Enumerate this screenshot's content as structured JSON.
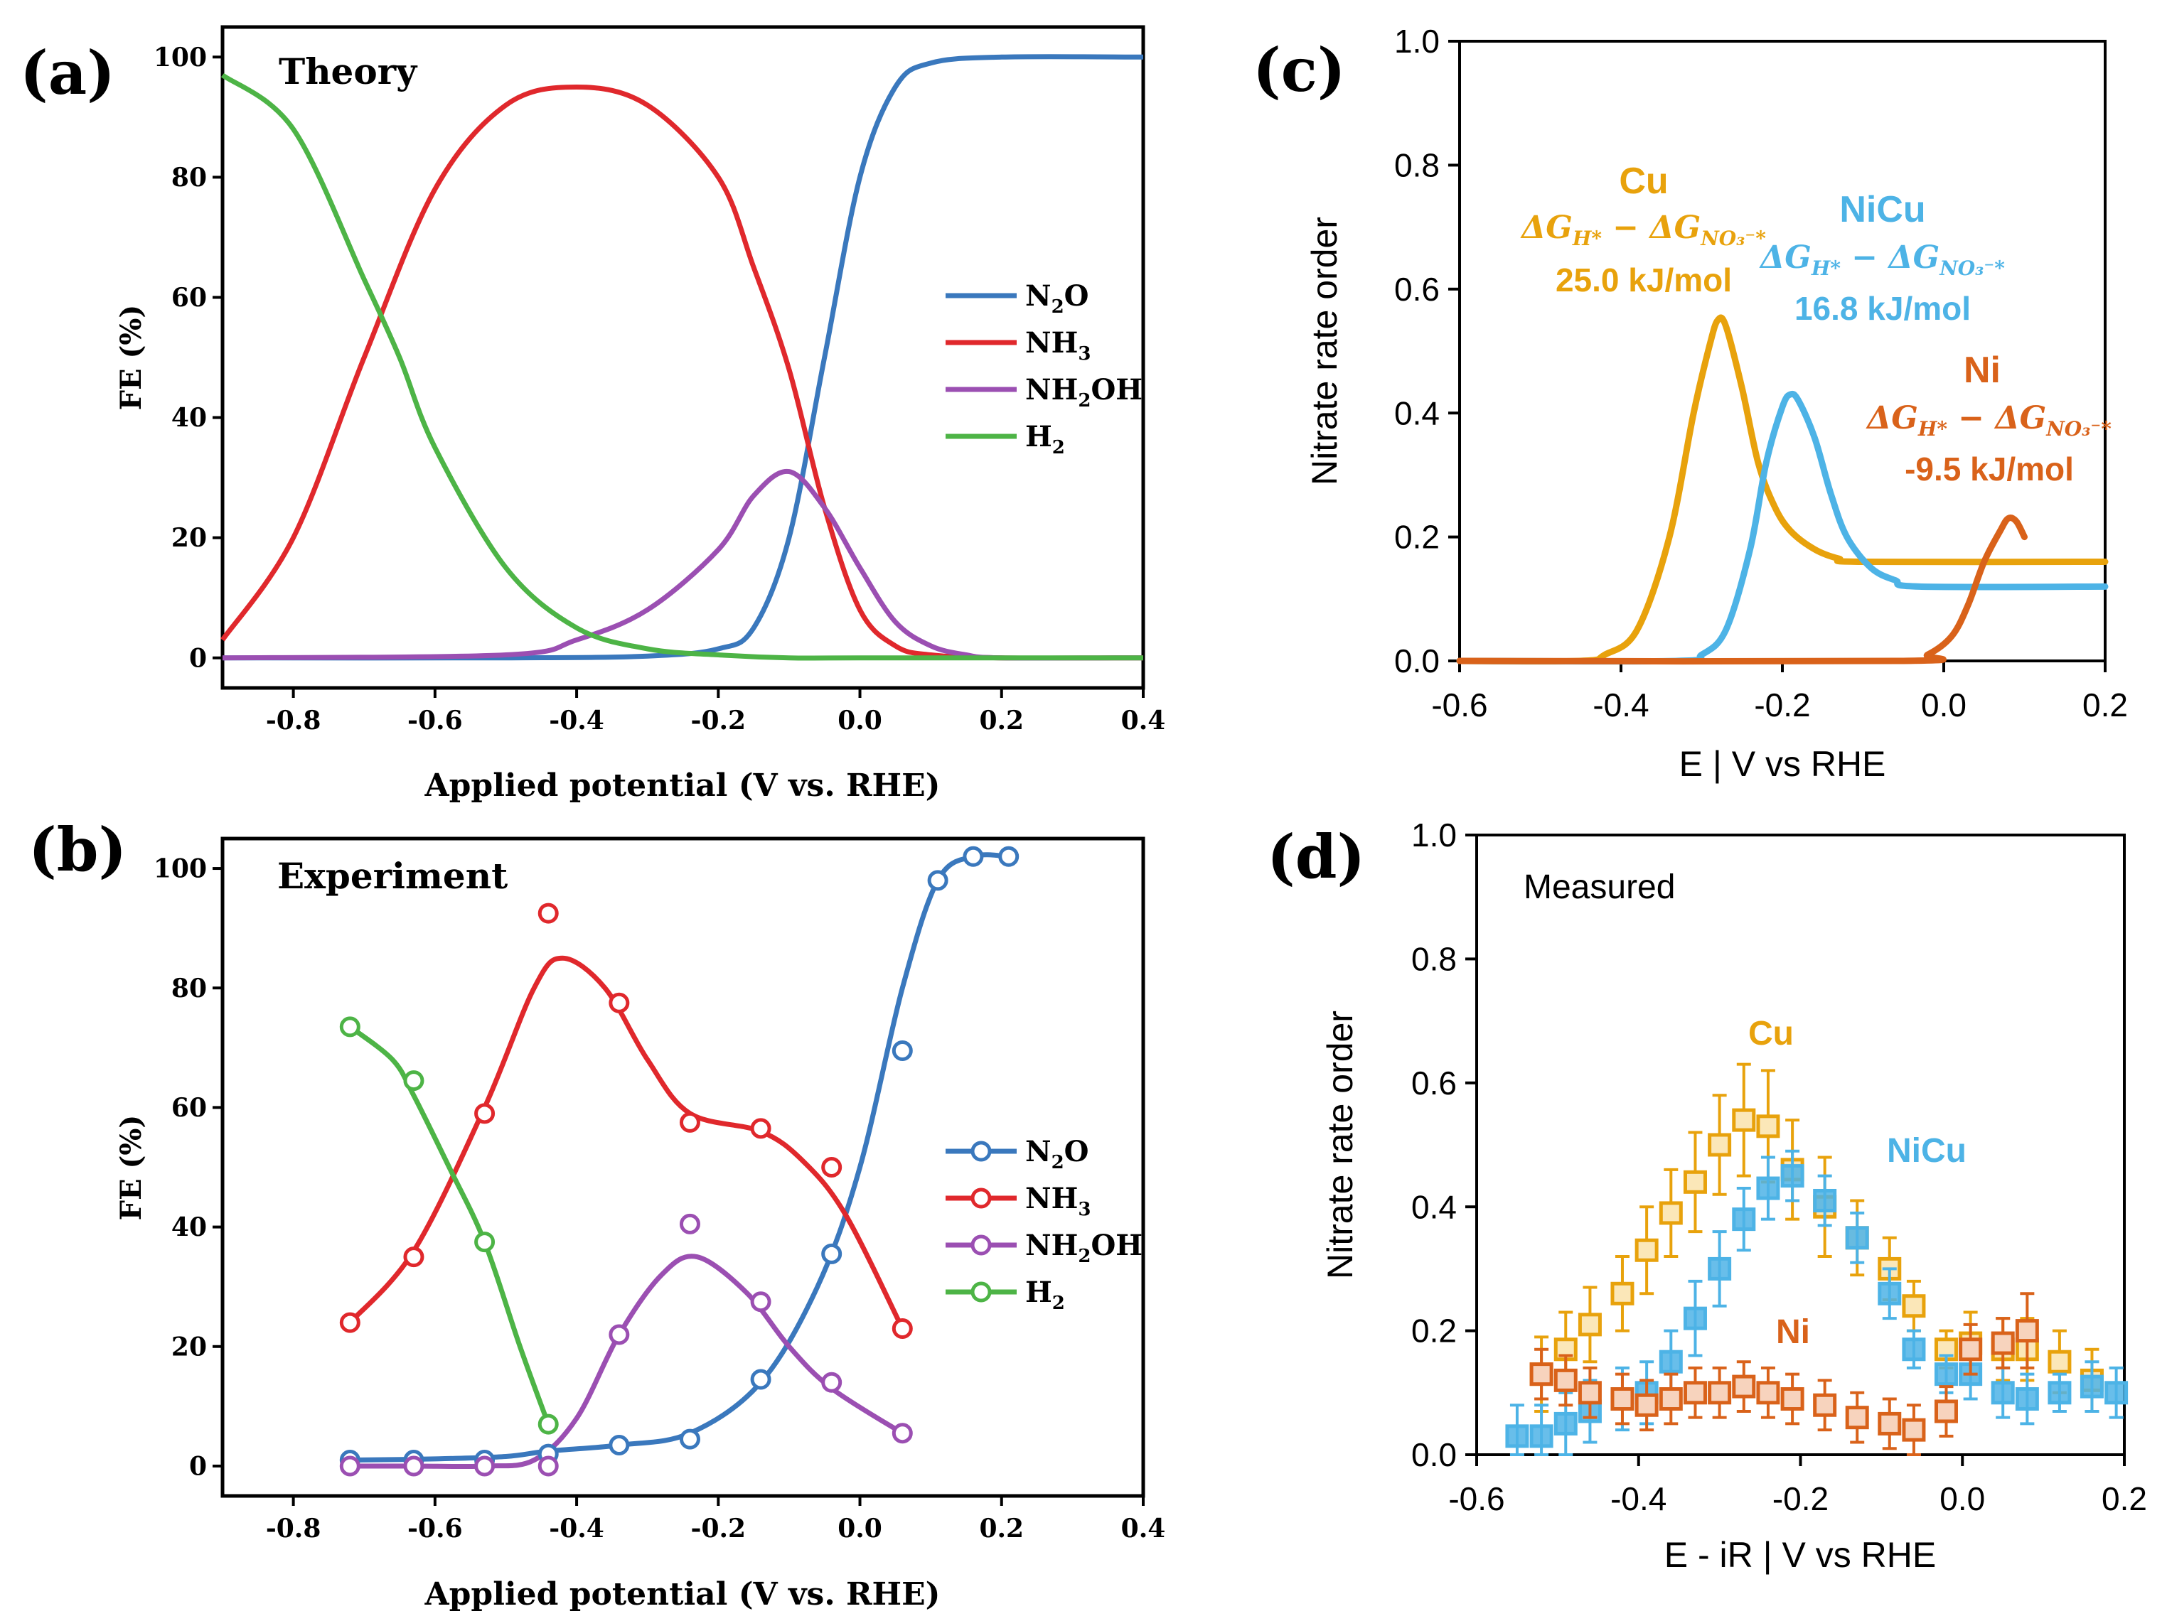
{
  "chart_data": [
    {
      "panel_id": "a",
      "panel_label": "(a)",
      "type": "line",
      "title": "Theory",
      "xlabel": "Applied potential (V vs. RHE)",
      "ylabel": "FE (%)",
      "xlim": [
        -0.9,
        0.4
      ],
      "ylim": [
        -5,
        105
      ],
      "xticks": [
        -0.8,
        -0.6,
        -0.4,
        -0.2,
        0.0,
        0.2,
        0.4
      ],
      "xtick_labels": [
        "-0.8",
        "-0.6",
        "-0.4",
        "-0.2",
        "0.0",
        "0.2",
        "0.4"
      ],
      "yticks": [
        0,
        20,
        40,
        60,
        80,
        100
      ],
      "ytick_labels": [
        "0",
        "20",
        "40",
        "60",
        "80",
        "100"
      ],
      "legend_position": "right",
      "series": [
        {
          "name": "N2O",
          "legend_base": "N",
          "legend_sub": "2",
          "legend_tail": "O",
          "color": "#3a78bd",
          "x": [
            -0.9,
            -0.5,
            -0.3,
            -0.2,
            -0.15,
            -0.1,
            -0.05,
            0.0,
            0.05,
            0.1,
            0.2,
            0.4
          ],
          "y": [
            0,
            0,
            0.3,
            1.5,
            5,
            20,
            50,
            80,
            95,
            99,
            100,
            100
          ]
        },
        {
          "name": "NH3",
          "legend_base": "NH",
          "legend_sub": "3",
          "legend_tail": "",
          "color": "#e0282c",
          "x": [
            -0.9,
            -0.8,
            -0.7,
            -0.6,
            -0.5,
            -0.4,
            -0.3,
            -0.2,
            -0.15,
            -0.1,
            -0.05,
            0.0,
            0.05,
            0.1,
            0.2,
            0.4
          ],
          "y": [
            3,
            20,
            50,
            78,
            92,
            95,
            92,
            80,
            65,
            48,
            25,
            8,
            2,
            0.5,
            0,
            0
          ]
        },
        {
          "name": "NH2OH",
          "legend_base": "NH",
          "legend_sub": "2",
          "legend_tail": "OH",
          "color": "#9b4fb2",
          "x": [
            -0.9,
            -0.5,
            -0.4,
            -0.3,
            -0.2,
            -0.15,
            -0.1,
            -0.05,
            0.0,
            0.05,
            0.1,
            0.15,
            0.2,
            0.4
          ],
          "y": [
            0,
            0.5,
            3,
            8,
            18,
            27,
            31,
            25,
            15,
            6,
            2,
            0.5,
            0,
            0
          ]
        },
        {
          "name": "H2",
          "legend_base": "H",
          "legend_sub": "2",
          "legend_tail": "",
          "color": "#4db446",
          "x": [
            -0.9,
            -0.8,
            -0.7,
            -0.65,
            -0.6,
            -0.5,
            -0.4,
            -0.3,
            -0.2,
            -0.1,
            0.0,
            0.4
          ],
          "y": [
            97,
            88,
            63,
            50,
            35,
            15,
            5,
            1.5,
            0.5,
            0,
            0,
            0
          ]
        }
      ]
    },
    {
      "panel_id": "b",
      "panel_label": "(b)",
      "type": "line",
      "title": "Experiment",
      "xlabel": "Applied potential (V vs. RHE)",
      "ylabel": "FE (%)",
      "xlim": [
        -0.9,
        0.4
      ],
      "ylim": [
        -5,
        105
      ],
      "xticks": [
        -0.8,
        -0.6,
        -0.4,
        -0.2,
        0.0,
        0.2,
        0.4
      ],
      "xtick_labels": [
        "-0.8",
        "-0.6",
        "-0.4",
        "-0.2",
        "0.0",
        "0.2",
        "0.4"
      ],
      "yticks": [
        0,
        20,
        40,
        60,
        80,
        100
      ],
      "ytick_labels": [
        "0",
        "20",
        "40",
        "60",
        "80",
        "100"
      ],
      "legend_position": "right",
      "series": [
        {
          "name": "N2O",
          "legend_base": "N",
          "legend_sub": "2",
          "legend_tail": "O",
          "color": "#3a78bd",
          "points_x": [
            -0.72,
            -0.63,
            -0.53,
            -0.44,
            -0.34,
            -0.24,
            -0.14,
            -0.04,
            0.06,
            0.11,
            0.16,
            0.21
          ],
          "points_y": [
            1,
            1,
            1,
            2,
            3.5,
            4.5,
            14.5,
            35.5,
            69.5,
            98,
            102,
            102
          ],
          "curve_x": [
            -0.72,
            -0.6,
            -0.5,
            -0.44,
            -0.34,
            -0.24,
            -0.14,
            -0.06,
            0.0,
            0.06,
            0.11,
            0.16,
            0.21
          ],
          "curve_y": [
            1,
            1.2,
            1.6,
            2.5,
            3.5,
            5.5,
            14,
            30,
            50,
            80,
            98,
            102,
            102
          ]
        },
        {
          "name": "NH3",
          "legend_base": "NH",
          "legend_sub": "3",
          "legend_tail": "",
          "color": "#e0282c",
          "points_x": [
            -0.72,
            -0.63,
            -0.53,
            -0.44,
            -0.34,
            -0.24,
            -0.14,
            -0.04,
            0.06
          ],
          "points_y": [
            24,
            35,
            59,
            92.5,
            77.5,
            57.5,
            56.5,
            50,
            23
          ],
          "curve_x": [
            -0.72,
            -0.63,
            -0.53,
            -0.46,
            -0.42,
            -0.36,
            -0.3,
            -0.24,
            -0.14,
            -0.08,
            -0.02,
            0.06
          ],
          "curve_y": [
            24,
            36,
            60,
            80,
            85,
            80,
            68,
            59,
            56,
            51,
            42,
            23
          ]
        },
        {
          "name": "NH2OH",
          "legend_base": "NH",
          "legend_sub": "2",
          "legend_tail": "OH",
          "color": "#9b4fb2",
          "points_x": [
            -0.72,
            -0.63,
            -0.53,
            -0.44,
            -0.34,
            -0.24,
            -0.14,
            -0.04,
            0.06
          ],
          "points_y": [
            0,
            0,
            0,
            0,
            22,
            40.5,
            27.5,
            14,
            5.5
          ],
          "curve_x": [
            -0.72,
            -0.63,
            -0.53,
            -0.46,
            -0.4,
            -0.34,
            -0.28,
            -0.23,
            -0.16,
            -0.1,
            -0.04,
            0.06
          ],
          "curve_y": [
            0,
            0,
            0,
            1,
            8,
            22,
            32,
            35,
            29,
            20,
            13,
            5.5
          ]
        },
        {
          "name": "H2",
          "legend_base": "H",
          "legend_sub": "2",
          "legend_tail": "",
          "color": "#4db446",
          "points_x": [
            -0.72,
            -0.63,
            -0.53,
            -0.44
          ],
          "points_y": [
            73.5,
            64.5,
            37.5,
            7
          ],
          "curve_x": [
            -0.72,
            -0.66,
            -0.63,
            -0.58,
            -0.53,
            -0.48,
            -0.44
          ],
          "curve_y": [
            73.5,
            68,
            62,
            50,
            37.5,
            20,
            7
          ]
        }
      ]
    },
    {
      "panel_id": "c",
      "panel_label": "(c)",
      "type": "line",
      "title": "",
      "xlabel": "E | V vs RHE",
      "ylabel": "Nitrate rate order",
      "xlim": [
        -0.6,
        0.2
      ],
      "ylim": [
        0.0,
        1.0
      ],
      "xticks": [
        -0.6,
        -0.4,
        -0.2,
        0.0,
        0.2
      ],
      "xtick_labels": [
        "-0.6",
        "-0.4",
        "-0.2",
        "0.0",
        "0.2"
      ],
      "yticks": [
        0.0,
        0.2,
        0.4,
        0.6,
        0.8,
        1.0
      ],
      "ytick_labels": [
        "0.0",
        "0.2",
        "0.4",
        "0.6",
        "0.8",
        "1.0"
      ],
      "series": [
        {
          "name": "Cu",
          "color": "#e8a20c",
          "label_name": "Cu",
          "label_value": "25.0 kJ/mol",
          "x": [
            -0.6,
            -0.45,
            -0.42,
            -0.38,
            -0.34,
            -0.31,
            -0.29,
            -0.28,
            -0.27,
            -0.25,
            -0.23,
            -0.21,
            -0.19,
            -0.16,
            -0.13,
            -0.1,
            0.2
          ],
          "y": [
            0.0,
            0.0,
            0.01,
            0.05,
            0.2,
            0.4,
            0.51,
            0.55,
            0.54,
            0.44,
            0.32,
            0.25,
            0.21,
            0.18,
            0.165,
            0.16,
            0.16
          ]
        },
        {
          "name": "NiCu",
          "color": "#4db3e6",
          "label_name": "NiCu",
          "label_value": "16.8 kJ/mol",
          "x": [
            -0.6,
            -0.33,
            -0.3,
            -0.27,
            -0.24,
            -0.22,
            -0.2,
            -0.19,
            -0.18,
            -0.16,
            -0.14,
            -0.12,
            -0.09,
            -0.06,
            -0.03,
            0.2
          ],
          "y": [
            0.0,
            0.0,
            0.01,
            0.05,
            0.18,
            0.32,
            0.41,
            0.43,
            0.42,
            0.36,
            0.27,
            0.2,
            0.15,
            0.13,
            0.12,
            0.12
          ]
        },
        {
          "name": "Ni",
          "color": "#d9621a",
          "label_name": "Ni",
          "label_value": "-9.5 kJ/mol",
          "x": [
            -0.6,
            -0.05,
            -0.02,
            0.01,
            0.03,
            0.05,
            0.07,
            0.08,
            0.09,
            0.1
          ],
          "y": [
            0.0,
            0.0,
            0.01,
            0.04,
            0.09,
            0.16,
            0.21,
            0.23,
            0.225,
            0.2
          ]
        }
      ]
    },
    {
      "panel_id": "d",
      "panel_label": "(d)",
      "type": "scatter",
      "title": "Measured",
      "xlabel": "E - iR | V vs RHE",
      "ylabel": "Nitrate rate order",
      "xlim": [
        -0.6,
        0.2
      ],
      "ylim": [
        0.0,
        1.0
      ],
      "xticks": [
        -0.6,
        -0.4,
        -0.2,
        0.0,
        0.2
      ],
      "xtick_labels": [
        "-0.6",
        "-0.4",
        "-0.2",
        "0.0",
        "0.2"
      ],
      "yticks": [
        0.0,
        0.2,
        0.4,
        0.6,
        0.8,
        1.0
      ],
      "ytick_labels": [
        "0.0",
        "0.2",
        "0.4",
        "0.6",
        "0.8",
        "1.0"
      ],
      "series": [
        {
          "name": "Cu",
          "color": "#e8a20c",
          "x": [
            -0.52,
            -0.49,
            -0.46,
            -0.42,
            -0.39,
            -0.36,
            -0.33,
            -0.3,
            -0.27,
            -0.24,
            -0.21,
            -0.17,
            -0.13,
            -0.09,
            -0.06,
            -0.02,
            0.01,
            0.05,
            0.08,
            0.12,
            0.16
          ],
          "y": [
            0.13,
            0.17,
            0.21,
            0.26,
            0.33,
            0.39,
            0.44,
            0.5,
            0.54,
            0.53,
            0.46,
            0.4,
            0.35,
            0.3,
            0.24,
            0.17,
            0.18,
            0.17,
            0.17,
            0.15,
            0.12
          ],
          "err": [
            0.06,
            0.06,
            0.06,
            0.06,
            0.07,
            0.07,
            0.08,
            0.08,
            0.09,
            0.09,
            0.08,
            0.08,
            0.06,
            0.05,
            0.04,
            0.03,
            0.05,
            0.05,
            0.05,
            0.05,
            0.05
          ]
        },
        {
          "name": "NiCu",
          "color": "#4db3e6",
          "x": [
            -0.55,
            -0.52,
            -0.49,
            -0.46,
            -0.42,
            -0.39,
            -0.36,
            -0.33,
            -0.3,
            -0.27,
            -0.24,
            -0.21,
            -0.17,
            -0.13,
            -0.09,
            -0.06,
            -0.02,
            0.01,
            0.05,
            0.08,
            0.12,
            0.16,
            0.19
          ],
          "y": [
            0.03,
            0.03,
            0.05,
            0.07,
            0.09,
            0.1,
            0.15,
            0.22,
            0.3,
            0.38,
            0.43,
            0.45,
            0.41,
            0.35,
            0.26,
            0.17,
            0.13,
            0.13,
            0.1,
            0.09,
            0.1,
            0.11,
            0.1
          ],
          "err": [
            0.05,
            0.05,
            0.05,
            0.05,
            0.05,
            0.05,
            0.05,
            0.06,
            0.06,
            0.05,
            0.05,
            0.04,
            0.04,
            0.04,
            0.04,
            0.03,
            0.03,
            0.04,
            0.04,
            0.04,
            0.03,
            0.04,
            0.04
          ]
        },
        {
          "name": "Ni",
          "color": "#d9621a",
          "x": [
            -0.52,
            -0.49,
            -0.46,
            -0.42,
            -0.39,
            -0.36,
            -0.33,
            -0.3,
            -0.27,
            -0.24,
            -0.21,
            -0.17,
            -0.13,
            -0.09,
            -0.06,
            -0.02,
            0.01,
            0.05,
            0.08
          ],
          "y": [
            0.13,
            0.12,
            0.1,
            0.09,
            0.08,
            0.09,
            0.1,
            0.1,
            0.11,
            0.1,
            0.09,
            0.08,
            0.06,
            0.05,
            0.04,
            0.07,
            0.17,
            0.18,
            0.2
          ],
          "err": [
            0.04,
            0.04,
            0.04,
            0.04,
            0.04,
            0.04,
            0.04,
            0.04,
            0.04,
            0.04,
            0.04,
            0.04,
            0.04,
            0.04,
            0.04,
            0.04,
            0.04,
            0.04,
            0.06
          ]
        }
      ],
      "annotations": [
        {
          "text": "Cu",
          "color": "#e8a20c"
        },
        {
          "text": "NiCu",
          "color": "#4db3e6"
        },
        {
          "text": "Ni",
          "color": "#d9621a"
        }
      ]
    }
  ]
}
